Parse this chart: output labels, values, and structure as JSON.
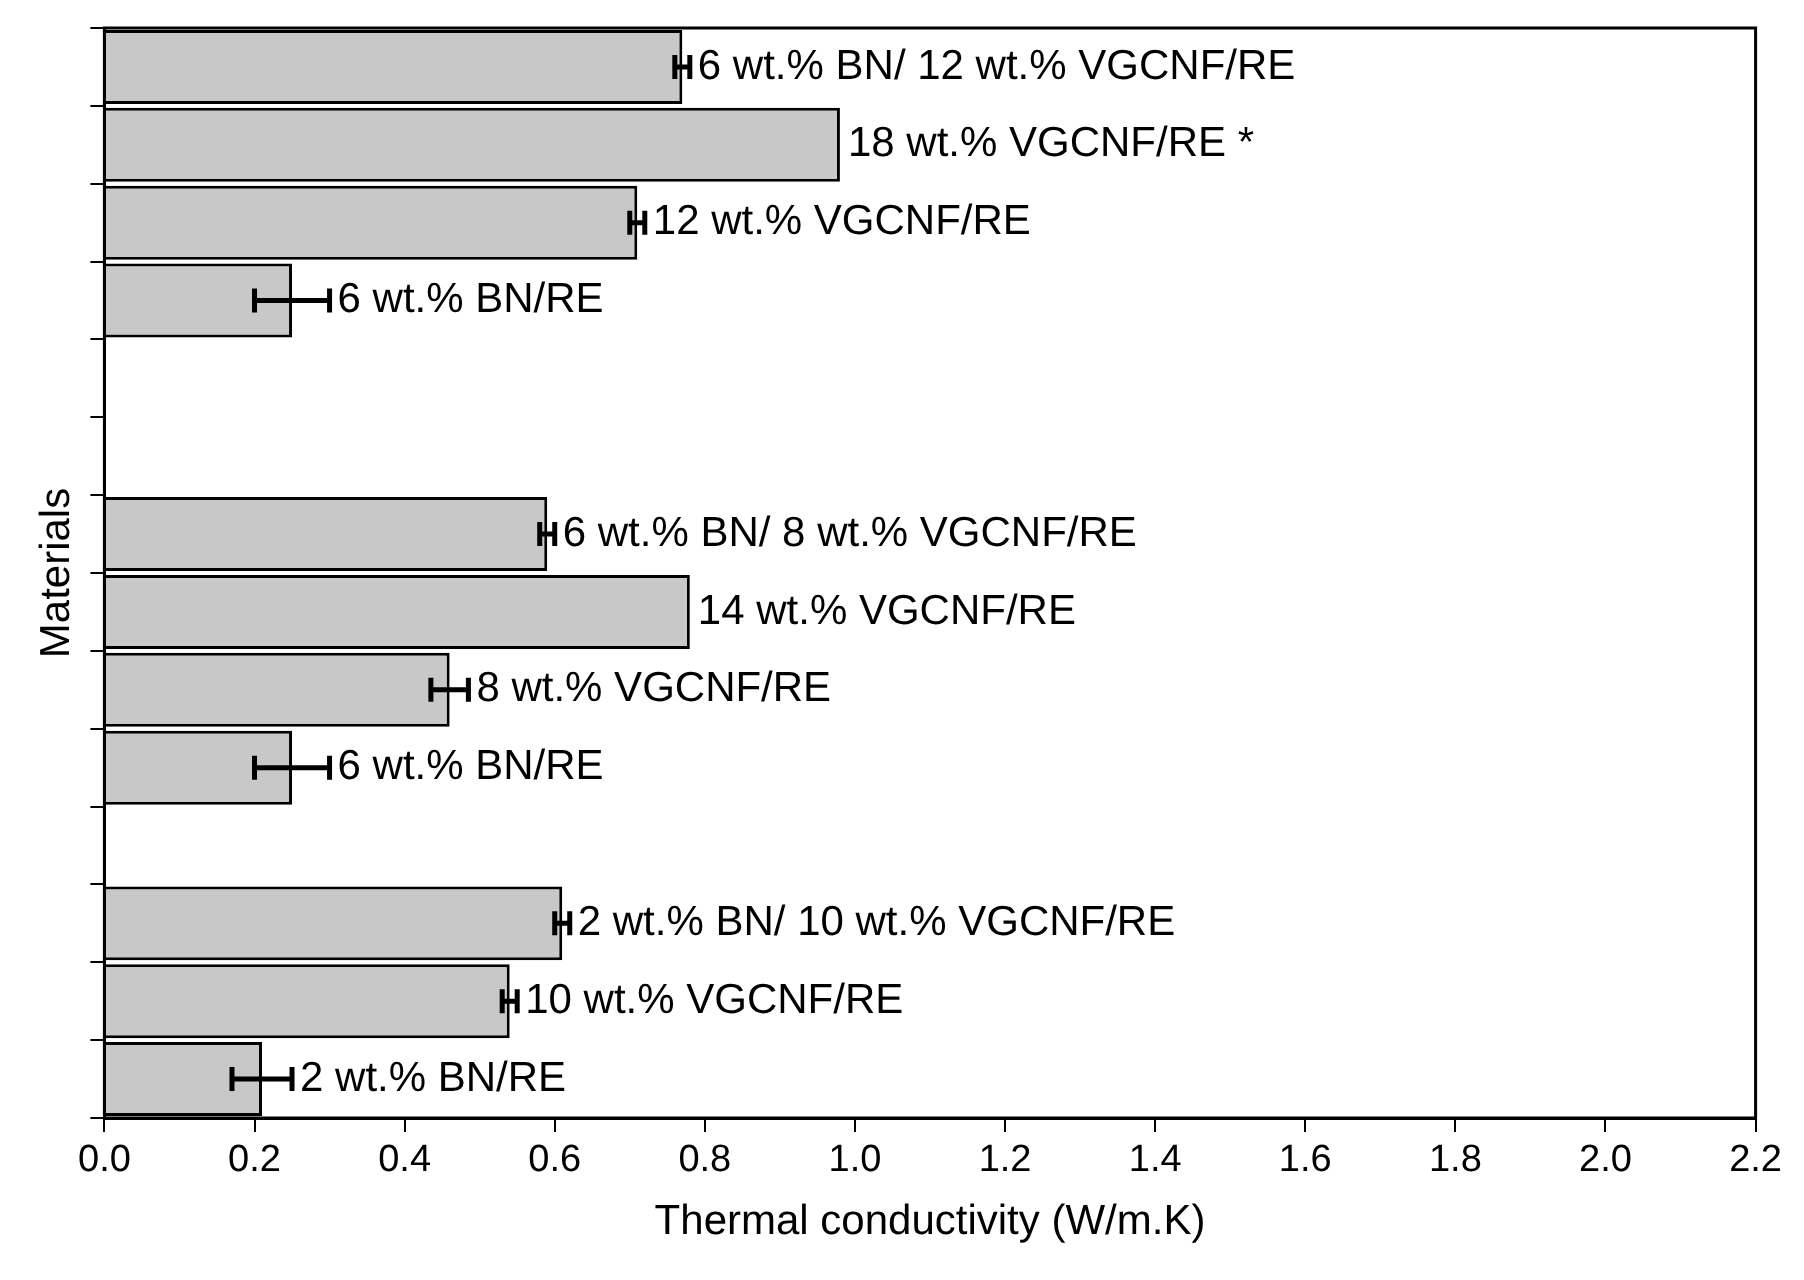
{
  "chart_data": {
    "type": "bar",
    "orientation": "horizontal",
    "xlabel": "Thermal conductivity (W/m.K)",
    "ylabel": "Materials",
    "categories": [
      "6 wt.% BN/ 12 wt.% VGCNF/RE",
      "18 wt.% VGCNF/RE *",
      "12 wt.% VGCNF/RE",
      "6 wt.% BN/RE",
      null,
      null,
      "6 wt.% BN/ 8 wt.% VGCNF/RE",
      "14 wt.% VGCNF/RE",
      "8 wt.% VGCNF/RE",
      "6 wt.% BN/RE",
      null,
      "2 wt.% BN/ 10 wt.% VGCNF/RE",
      "10 wt.% VGCNF/RE",
      "2 wt.% BN/RE"
    ],
    "values": [
      0.77,
      0.98,
      0.71,
      0.25,
      null,
      null,
      0.59,
      0.78,
      0.46,
      0.25,
      null,
      0.61,
      0.54,
      0.21
    ],
    "errors": [
      0.01,
      null,
      0.01,
      0.05,
      null,
      null,
      0.01,
      null,
      0.025,
      0.05,
      null,
      0.01,
      0.01,
      0.04
    ],
    "color": "#c8c8c8",
    "xlim": [
      0,
      2.2
    ],
    "xticks": [
      {
        "value": 0,
        "label": "0.0"
      },
      0.2,
      0.4,
      0.6,
      0.8,
      {
        "value": 1,
        "label": "1.0"
      },
      1.2,
      1.4,
      1.6,
      1.8,
      {
        "value": 2,
        "label": "2.0"
      },
      2.2
    ],
    "tick_labels": "x",
    "grid": false,
    "legend": false
  }
}
